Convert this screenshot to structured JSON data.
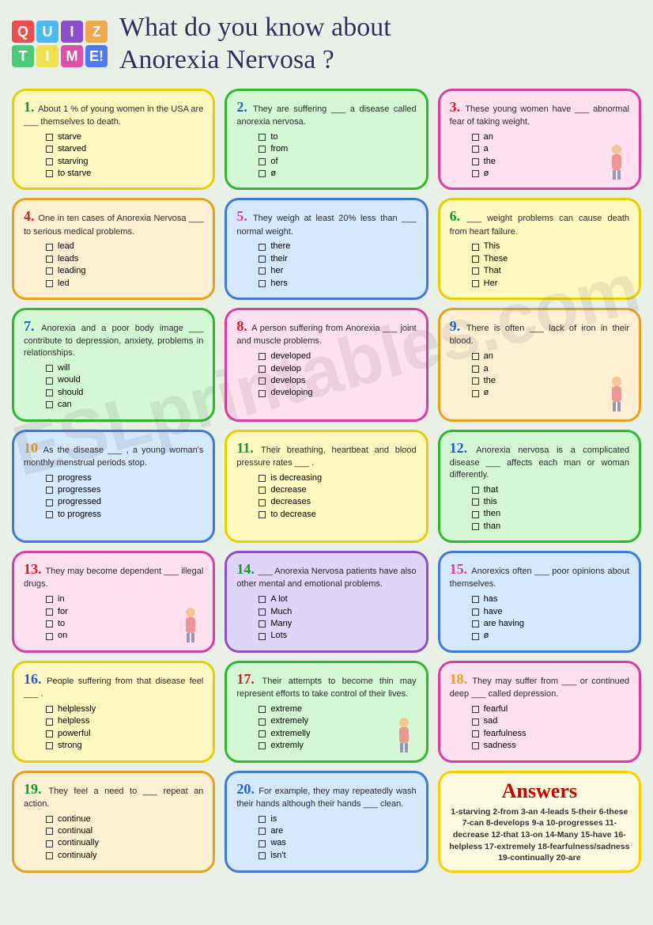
{
  "logo": {
    "tiles": [
      {
        "letter": "Q",
        "bg": "#f04e4e"
      },
      {
        "letter": "U",
        "bg": "#4eb8f0"
      },
      {
        "letter": "I",
        "bg": "#8e4ec9"
      },
      {
        "letter": "Z",
        "bg": "#f0a84e"
      },
      {
        "letter": "T",
        "bg": "#4ec97a"
      },
      {
        "letter": "I",
        "bg": "#f0e04e"
      },
      {
        "letter": "M",
        "bg": "#e04ea8"
      },
      {
        "letter": "E!",
        "bg": "#4e7af0"
      }
    ]
  },
  "title_line1": "What do you know about",
  "title_line2": "Anorexia Nervosa ?",
  "watermark": "ESLprintables.com",
  "cards": [
    {
      "num": "1.",
      "num_color": "#0a9e2e",
      "text": "About 1 % of young women in the USA are ___ themselves to death.",
      "opts": [
        "starve",
        "starved",
        "starving",
        "to starve"
      ],
      "bg": "#fff8c0",
      "border": "#e8d000"
    },
    {
      "num": "2.",
      "num_color": "#1e5fd6",
      "text": "They are suffering ___ a disease called anorexia nervosa.",
      "opts": [
        "to",
        "from",
        "of",
        "ø"
      ],
      "bg": "#d4f8d4",
      "border": "#2eb82e"
    },
    {
      "num": "3.",
      "num_color": "#d61e1e",
      "text": "These young women have ___ abnormal fear of taking weight.",
      "opts": [
        "an",
        "a",
        "the",
        "ø"
      ],
      "bg": "#ffe0f0",
      "border": "#d63ea0",
      "img": true
    },
    {
      "num": "4.",
      "num_color": "#d61e1e",
      "text": "One in ten cases of Anorexia Nervosa ___ to serious medical problems.",
      "opts": [
        "lead",
        "leads",
        "leading",
        "led"
      ],
      "bg": "#fff0d4",
      "border": "#e8a020"
    },
    {
      "num": "5.",
      "num_color": "#d63ea0",
      "text": "They weigh at least 20% less than ___ normal weight.",
      "opts": [
        "there",
        "their",
        "her",
        "hers"
      ],
      "bg": "#d4e8ff",
      "border": "#3e7ad6"
    },
    {
      "num": "6.",
      "num_color": "#0a9e2e",
      "text": "___ weight problems can cause death from heart failure.",
      "opts": [
        "This",
        "These",
        "That",
        "Her"
      ],
      "bg": "#fff8c0",
      "border": "#e8d000"
    },
    {
      "num": "7.",
      "num_color": "#1e5fd6",
      "text": "Anorexia and a poor body image ___ contribute to depression, anxiety, problems in relationships.",
      "opts": [
        "will",
        "would",
        "should",
        "can"
      ],
      "bg": "#d4f8d4",
      "border": "#2eb82e"
    },
    {
      "num": "8.",
      "num_color": "#d61e1e",
      "text": "A person suffering from Anorexia ___ joint and muscle problems.",
      "opts": [
        "developed",
        "develop",
        "develops",
        "developing"
      ],
      "bg": "#ffe0f0",
      "border": "#d63ea0"
    },
    {
      "num": "9.",
      "num_color": "#1e5fd6",
      "text": "There is often ___ lack of iron in their blood.",
      "opts": [
        "an",
        "a",
        "the",
        "ø"
      ],
      "bg": "#fff0d4",
      "border": "#e8a020",
      "img": true
    },
    {
      "num": "10",
      "num_color": "#e8a020",
      "text": "As the disease ___ , a young woman's monthly menstrual periods stop.",
      "opts": [
        "progress",
        "progresses",
        "progressed",
        "to progress"
      ],
      "bg": "#d4e8ff",
      "border": "#3e7ad6"
    },
    {
      "num": "11.",
      "num_color": "#0a9e2e",
      "text": "Their breathing, heartbeat and blood pressure rates ___ .",
      "opts": [
        "is decreasing",
        "decrease",
        "decreases",
        "to decrease"
      ],
      "bg": "#fff8c0",
      "border": "#e8d000"
    },
    {
      "num": "12.",
      "num_color": "#1e5fd6",
      "text": "Anorexia nervosa is a complicated disease ___ affects each man or woman differently.",
      "opts": [
        "that",
        "this",
        "then",
        "than"
      ],
      "bg": "#d4f8d4",
      "border": "#2eb82e"
    },
    {
      "num": "13.",
      "num_color": "#d61e1e",
      "text": "They may become dependent ___ illegal drugs.",
      "opts": [
        "in",
        "for",
        "to",
        "on"
      ],
      "bg": "#ffe0f0",
      "border": "#d63ea0",
      "img": true
    },
    {
      "num": "14.",
      "num_color": "#0a9e2e",
      "text": "___ Anorexia Nervosa patients have also other mental and emotional problems.",
      "opts": [
        "A lot",
        "Much",
        "Many",
        "Lots"
      ],
      "bg": "#e0d4f8",
      "border": "#8e4ec9"
    },
    {
      "num": "15.",
      "num_color": "#d63ea0",
      "text": "Anorexics often ___ poor opinions about themselves.",
      "opts": [
        "has",
        "have",
        "are having",
        "ø"
      ],
      "bg": "#d4e8ff",
      "border": "#3e7ad6"
    },
    {
      "num": "16.",
      "num_color": "#1e5fd6",
      "text": "People suffering from that disease feel ___ .",
      "opts": [
        "helplessly",
        "helpless",
        "powerful",
        "strong"
      ],
      "bg": "#fff8c0",
      "border": "#e8d000"
    },
    {
      "num": "17.",
      "num_color": "#d61e1e",
      "text": "Their attempts to become thin may represent efforts to take control of their lives.",
      "opts": [
        "extreme",
        "extremely",
        "extremelly",
        "extremly"
      ],
      "bg": "#d4f8d4",
      "border": "#2eb82e",
      "img": true
    },
    {
      "num": "18.",
      "num_color": "#e8a020",
      "text": "They may suffer from ___ or continued deep ___ called depression.",
      "opts": [
        "fearful",
        "sad",
        "fearfulness",
        "sadness"
      ],
      "bg": "#ffe0f0",
      "border": "#d63ea0"
    },
    {
      "num": "19.",
      "num_color": "#0a9e2e",
      "text": "They feel a need to ___ repeat an action.",
      "opts": [
        "continue",
        "continual",
        "continually",
        "continualy"
      ],
      "bg": "#fff0d4",
      "border": "#e8a020"
    },
    {
      "num": "20.",
      "num_color": "#1e5fd6",
      "text": "For example, they may repeatedly wash their hands although their hands ___ clean.",
      "opts": [
        "is",
        "are",
        "was",
        "isn't"
      ],
      "bg": "#d4e8ff",
      "border": "#3e7ad6"
    }
  ],
  "answers": {
    "title": "Answers",
    "text": "1-starving 2-from 3-an 4-leads 5-their 6-these 7-can 8-develops 9-a 10-progresses 11-decrease 12-that 13-on 14-Many 15-have 16-helpless 17-extremely 18-fearfulness/sadness 19-continually 20-are"
  }
}
